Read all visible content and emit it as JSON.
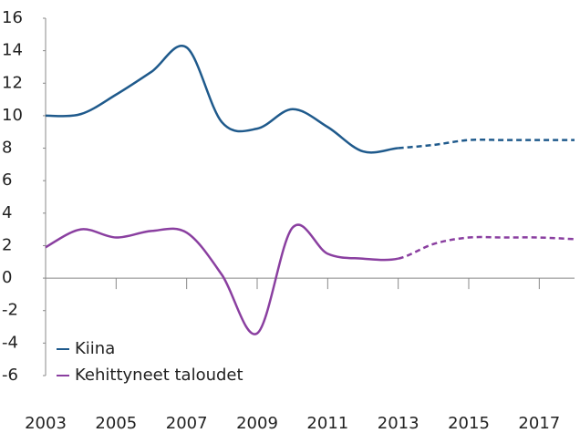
{
  "chart_data": {
    "type": "line",
    "x": [
      2003,
      2004,
      2005,
      2006,
      2007,
      2008,
      2009,
      2010,
      2011,
      2012,
      2013,
      2014,
      2015,
      2016,
      2017,
      2018
    ],
    "series": [
      {
        "name": "Kiina",
        "color": "#1f5a8c",
        "values": [
          10.0,
          10.1,
          11.3,
          12.7,
          14.2,
          9.6,
          9.2,
          10.4,
          9.3,
          7.8,
          8.0,
          8.2,
          8.5,
          8.5,
          8.5,
          8.5
        ]
      },
      {
        "name": "Kehittyneet taloudet",
        "color": "#8a3fa0",
        "values": [
          1.9,
          3.0,
          2.5,
          2.9,
          2.8,
          0.2,
          -3.4,
          3.1,
          1.5,
          1.2,
          1.2,
          2.1,
          2.5,
          2.5,
          2.5,
          2.4
        ]
      }
    ],
    "dashed_from": 2013,
    "xlim": [
      2003,
      2018
    ],
    "xticks": [
      2003,
      2005,
      2007,
      2009,
      2011,
      2013,
      2015,
      2017
    ],
    "ylim": [
      -6,
      16
    ],
    "yticks": [
      -6,
      -4,
      -2,
      0,
      2,
      4,
      6,
      8,
      10,
      12,
      14,
      16
    ],
    "legend": "lower left",
    "grid": false
  }
}
